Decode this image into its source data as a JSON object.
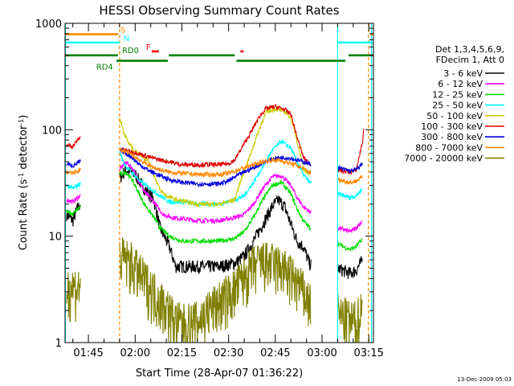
{
  "chart_data": {
    "type": "line",
    "title": "HESSI Observing Summary Count Rates",
    "xlabel": "Start Time (28-Apr-07 01:36:22)",
    "ylabel": "Count Rate (s",
    "ylabel_sup1": "-1",
    "ylabel_mid": " detector",
    "ylabel_sup2": "-1",
    "ylabel_end": ")",
    "yscale": "log",
    "ylim": [
      1,
      1000
    ],
    "xlim": [
      97.5,
      196.5
    ],
    "x_unit": "minutes after 00:00 UT, 28-Apr-07",
    "x_ticks": [
      {
        "x": 105,
        "label": "01:45"
      },
      {
        "x": 120,
        "label": "02:00"
      },
      {
        "x": 135,
        "label": "02:15"
      },
      {
        "x": 150,
        "label": "02:30"
      },
      {
        "x": 165,
        "label": "02:45"
      },
      {
        "x": 180,
        "label": "03:00"
      },
      {
        "x": 195,
        "label": "03:15"
      }
    ],
    "y_ticks": [
      {
        "y": 1,
        "label": "1"
      },
      {
        "y": 10,
        "label": "10"
      },
      {
        "y": 100,
        "label": "100"
      },
      {
        "y": 1000,
        "label": "1000"
      }
    ],
    "legend_header": [
      "Det 1,3,4,5,6,9,",
      "FDecim 1, Att 0"
    ],
    "legend_placement": "right",
    "segments": [
      [
        97.5,
        102.5
      ],
      [
        115.0,
        176.5
      ],
      [
        185.0,
        193.5
      ]
    ],
    "series": [
      {
        "name": "3 - 6 keV",
        "color": "#000000",
        "points": [
          [
            98,
            16
          ],
          [
            100,
            14
          ],
          [
            101,
            17
          ],
          [
            102.3,
            20
          ],
          [
            115,
            35
          ],
          [
            117,
            42
          ],
          [
            120,
            38
          ],
          [
            123,
            28
          ],
          [
            126,
            22
          ],
          [
            128,
            12
          ],
          [
            131,
            8
          ],
          [
            133,
            5.2
          ],
          [
            140,
            5.2
          ],
          [
            147,
            5.2
          ],
          [
            152,
            5.6
          ],
          [
            155,
            6.5
          ],
          [
            158,
            9
          ],
          [
            161,
            13
          ],
          [
            164,
            19
          ],
          [
            166,
            22
          ],
          [
            168,
            19
          ],
          [
            170,
            13
          ],
          [
            172,
            9
          ],
          [
            174,
            8
          ],
          [
            176,
            5.5
          ],
          [
            185,
            5
          ],
          [
            189,
            4.5
          ],
          [
            191,
            4.8
          ],
          [
            193,
            6
          ]
        ]
      },
      {
        "name": "6 - 12 keV",
        "color": "#ff00ff",
        "points": [
          [
            98,
            22
          ],
          [
            100,
            21
          ],
          [
            102.3,
            24
          ],
          [
            115,
            42
          ],
          [
            117,
            50
          ],
          [
            119,
            44
          ],
          [
            121,
            34
          ],
          [
            123,
            26
          ],
          [
            126,
            21
          ],
          [
            129,
            16
          ],
          [
            132,
            15
          ],
          [
            140,
            14
          ],
          [
            147,
            14
          ],
          [
            152,
            15
          ],
          [
            155,
            16
          ],
          [
            158,
            20
          ],
          [
            161,
            28
          ],
          [
            164,
            36
          ],
          [
            167,
            37
          ],
          [
            170,
            30
          ],
          [
            172,
            23
          ],
          [
            174,
            19
          ],
          [
            176,
            17
          ],
          [
            185,
            12
          ],
          [
            189,
            11
          ],
          [
            191,
            12
          ],
          [
            193,
            14
          ]
        ]
      },
      {
        "name": "12 - 25 keV",
        "color": "#00dd00",
        "points": [
          [
            98,
            17
          ],
          [
            100,
            16
          ],
          [
            102.3,
            19
          ],
          [
            115,
            38
          ],
          [
            117,
            40
          ],
          [
            119,
            34
          ],
          [
            121,
            26
          ],
          [
            123,
            20
          ],
          [
            126,
            15
          ],
          [
            128,
            12
          ],
          [
            131,
            10
          ],
          [
            135,
            9
          ],
          [
            140,
            9
          ],
          [
            147,
            9
          ],
          [
            152,
            9.5
          ],
          [
            155,
            11
          ],
          [
            158,
            15
          ],
          [
            161,
            22
          ],
          [
            164,
            30
          ],
          [
            167,
            32
          ],
          [
            170,
            25
          ],
          [
            172,
            18
          ],
          [
            174,
            14
          ],
          [
            176,
            12
          ],
          [
            185,
            8.5
          ],
          [
            189,
            7.5
          ],
          [
            191,
            8
          ],
          [
            193,
            9.5
          ]
        ]
      },
      {
        "name": "25 - 50 keV",
        "color": "#00ffff",
        "points": [
          [
            98,
            30
          ],
          [
            100,
            28
          ],
          [
            102.3,
            31
          ],
          [
            115,
            62
          ],
          [
            116.5,
            48
          ],
          [
            118,
            42
          ],
          [
            120,
            37
          ],
          [
            122,
            32
          ],
          [
            125,
            28
          ],
          [
            128,
            24
          ],
          [
            131,
            21
          ],
          [
            135,
            21
          ],
          [
            140,
            20
          ],
          [
            147,
            20
          ],
          [
            152,
            22
          ],
          [
            155,
            24
          ],
          [
            158,
            32
          ],
          [
            161,
            45
          ],
          [
            164,
            64
          ],
          [
            167,
            78
          ],
          [
            170,
            67
          ],
          [
            172,
            50
          ],
          [
            174,
            38
          ],
          [
            176,
            32
          ],
          [
            185,
            25
          ],
          [
            189,
            23
          ],
          [
            191,
            24
          ],
          [
            193,
            28
          ]
        ]
      },
      {
        "name": "50 - 100 keV",
        "color": "#cccc00",
        "points": [
          [
            115,
            130
          ],
          [
            116.5,
            92
          ],
          [
            118,
            74
          ],
          [
            120,
            63
          ],
          [
            122,
            58
          ],
          [
            124,
            52
          ],
          [
            126,
            38
          ],
          [
            128,
            27
          ],
          [
            130,
            24
          ],
          [
            133,
            22
          ],
          [
            140,
            20
          ],
          [
            147,
            20
          ],
          [
            152,
            22
          ],
          [
            154,
            34
          ],
          [
            157,
            58
          ],
          [
            160,
            105
          ],
          [
            162,
            145
          ],
          [
            165,
            158
          ],
          [
            168,
            148
          ],
          [
            170,
            130
          ],
          [
            172,
            78
          ],
          [
            174,
            44
          ],
          [
            176,
            36
          ]
        ]
      },
      {
        "name": "100 - 300 keV",
        "color": "#dd0000",
        "points": [
          [
            98,
            72
          ],
          [
            100,
            70
          ],
          [
            102.3,
            85
          ],
          [
            115,
            66
          ],
          [
            117,
            64
          ],
          [
            119,
            62
          ],
          [
            121,
            60
          ],
          [
            124,
            56
          ],
          [
            127,
            53
          ],
          [
            131,
            50
          ],
          [
            135,
            47
          ],
          [
            140,
            47
          ],
          [
            147,
            47
          ],
          [
            150,
            48
          ],
          [
            152,
            52
          ],
          [
            154,
            66
          ],
          [
            157,
            93
          ],
          [
            160,
            135
          ],
          [
            162,
            158
          ],
          [
            165,
            165
          ],
          [
            168,
            155
          ],
          [
            170,
            140
          ],
          [
            172,
            85
          ],
          [
            174,
            55
          ],
          [
            176,
            48
          ],
          [
            185,
            42
          ],
          [
            189,
            40
          ],
          [
            191,
            42
          ],
          [
            193,
            78
          ],
          [
            194,
            140
          ]
        ]
      },
      {
        "name": "300 - 800 keV",
        "color": "#0000dd",
        "points": [
          [
            98,
            48
          ],
          [
            100,
            46
          ],
          [
            102.3,
            50
          ],
          [
            115,
            65
          ],
          [
            117,
            60
          ],
          [
            119,
            55
          ],
          [
            121,
            48
          ],
          [
            124,
            42
          ],
          [
            127,
            38
          ],
          [
            131,
            34
          ],
          [
            135,
            32
          ],
          [
            140,
            31
          ],
          [
            147,
            31
          ],
          [
            150,
            33
          ],
          [
            152,
            36
          ],
          [
            155,
            40
          ],
          [
            158,
            44
          ],
          [
            161,
            49
          ],
          [
            164,
            53
          ],
          [
            167,
            55
          ],
          [
            170,
            54
          ],
          [
            172,
            52
          ],
          [
            174,
            50
          ],
          [
            176,
            48
          ],
          [
            185,
            44
          ],
          [
            189,
            41
          ],
          [
            191,
            42
          ],
          [
            193,
            48
          ]
        ]
      },
      {
        "name": "800 - 7000 keV",
        "color": "#ff8800",
        "points": [
          [
            98,
            40
          ],
          [
            100,
            39
          ],
          [
            102.3,
            42
          ],
          [
            115,
            65
          ],
          [
            117,
            62
          ],
          [
            119,
            58
          ],
          [
            121,
            53
          ],
          [
            124,
            47
          ],
          [
            127,
            43
          ],
          [
            131,
            40
          ],
          [
            135,
            39
          ],
          [
            140,
            38
          ],
          [
            147,
            38
          ],
          [
            150,
            39
          ],
          [
            152,
            41
          ],
          [
            155,
            44
          ],
          [
            158,
            47
          ],
          [
            161,
            50
          ],
          [
            164,
            52
          ],
          [
            167,
            51
          ],
          [
            170,
            48
          ],
          [
            172,
            46
          ],
          [
            174,
            43
          ],
          [
            176,
            40
          ],
          [
            185,
            34
          ],
          [
            189,
            32
          ],
          [
            191,
            33
          ],
          [
            193,
            36
          ]
        ]
      },
      {
        "name": "7000 - 20000 keV",
        "color": "#808000",
        "points": [
          [
            98,
            3.3
          ],
          [
            100,
            3.4
          ],
          [
            102.3,
            3.4
          ],
          [
            115,
            6.5
          ],
          [
            117,
            6.2
          ],
          [
            119,
            5.6
          ],
          [
            121,
            4.6
          ],
          [
            124,
            3.6
          ],
          [
            127,
            2.8
          ],
          [
            130,
            2.2
          ],
          [
            133,
            1.6
          ],
          [
            136,
            1.5
          ],
          [
            140,
            1.6
          ],
          [
            144,
            2.1
          ],
          [
            148,
            2.6
          ],
          [
            152,
            3.2
          ],
          [
            155,
            4.2
          ],
          [
            158,
            5.3
          ],
          [
            161,
            5.8
          ],
          [
            164,
            5.6
          ],
          [
            167,
            5.2
          ],
          [
            170,
            4.3
          ],
          [
            173,
            3.4
          ],
          [
            176,
            2.4
          ],
          [
            185,
            1.9
          ],
          [
            189,
            1.6
          ],
          [
            191,
            1.6
          ],
          [
            193,
            2.2
          ]
        ]
      }
    ],
    "flag_bars": [
      {
        "label": "S",
        "color": "#ff8800",
        "level": 790,
        "label_x": 115.3,
        "ranges": [
          [
            97.5,
            114.5
          ],
          [
            195.5,
            196.3
          ]
        ]
      },
      {
        "label": "N",
        "color": "#00ffff",
        "level": 660,
        "label_x": 116.3,
        "ranges": [
          [
            97.5,
            115.0
          ],
          [
            185.0,
            196.5
          ]
        ]
      },
      {
        "label": "F",
        "color": "#ff0000",
        "level": 545,
        "label_x": 123.5,
        "ranges": [
          [
            125.3,
            127.6
          ],
          [
            153.8,
            154.8
          ]
        ]
      },
      {
        "label": "RD0",
        "color": "#008000",
        "level": 500,
        "label_x": 115.8,
        "ranges": [
          [
            97.5,
            114.5
          ],
          [
            130.8,
            152.0
          ],
          [
            188.5,
            196.5
          ]
        ]
      },
      {
        "label": "RD4",
        "color": "#008000",
        "level": 445,
        "label_x": 107.5,
        "ranges": [
          [
            114.0,
            130.5
          ],
          [
            152.5,
            187.5
          ]
        ]
      }
    ],
    "vertical_lines": [
      {
        "x": 97.6,
        "color": "#00ffff",
        "dashed": false
      },
      {
        "x": 115.0,
        "color": "#ff8800",
        "dashed": true
      },
      {
        "x": 185.0,
        "color": "#00ffff",
        "dashed": false
      },
      {
        "x": 194.9,
        "color": "#ff8800",
        "dashed": true
      },
      {
        "x": 195.9,
        "color": "#00ffff",
        "dashed": false
      }
    ],
    "timestamp": "13-Dec-2009 05:03"
  }
}
